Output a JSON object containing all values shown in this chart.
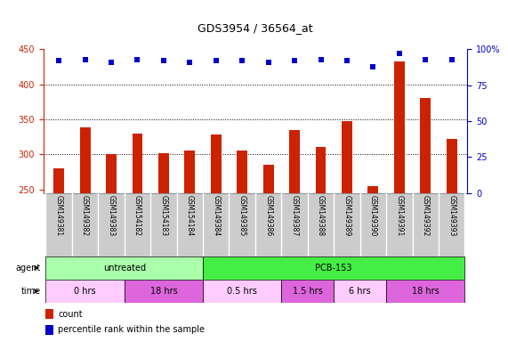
{
  "title": "GDS3954 / 36564_at",
  "samples": [
    "GSM149381",
    "GSM149382",
    "GSM149383",
    "GSM154182",
    "GSM154183",
    "GSM154184",
    "GSM149384",
    "GSM149385",
    "GSM149386",
    "GSM149387",
    "GSM149388",
    "GSM149389",
    "GSM149390",
    "GSM149391",
    "GSM149392",
    "GSM149393"
  ],
  "counts": [
    280,
    338,
    300,
    330,
    302,
    305,
    328,
    306,
    285,
    335,
    311,
    348,
    255,
    432,
    380,
    322
  ],
  "percentile_ranks": [
    92,
    93,
    91,
    93,
    92,
    91,
    92,
    92,
    91,
    92,
    93,
    92,
    88,
    97,
    93,
    93
  ],
  "ylim_left": [
    245,
    450
  ],
  "ylim_right": [
    0,
    100
  ],
  "yticks_left": [
    250,
    300,
    350,
    400,
    450
  ],
  "yticks_right": [
    0,
    25,
    50,
    75,
    100
  ],
  "bar_color": "#cc2200",
  "dot_color": "#0000cc",
  "agent_groups": [
    {
      "label": "untreated",
      "start": 0,
      "end": 6,
      "color": "#aaffaa"
    },
    {
      "label": "PCB-153",
      "start": 6,
      "end": 16,
      "color": "#44ee44"
    }
  ],
  "time_groups": [
    {
      "label": "0 hrs",
      "start": 0,
      "end": 3,
      "color": "#ffccff"
    },
    {
      "label": "18 hrs",
      "start": 3,
      "end": 6,
      "color": "#dd66dd"
    },
    {
      "label": "0.5 hrs",
      "start": 6,
      "end": 9,
      "color": "#ffccff"
    },
    {
      "label": "1.5 hrs",
      "start": 9,
      "end": 11,
      "color": "#dd66dd"
    },
    {
      "label": "6 hrs",
      "start": 11,
      "end": 13,
      "color": "#ffccff"
    },
    {
      "label": "18 hrs",
      "start": 13,
      "end": 16,
      "color": "#dd66dd"
    }
  ],
  "legend_count_label": "count",
  "legend_pct_label": "percentile rank within the sample",
  "bg_color": "#ffffff",
  "label_area_color": "#cccccc",
  "bar_width": 0.4,
  "dot_size": 20,
  "title_fontsize": 9,
  "tick_fontsize": 7,
  "label_fontsize": 5.5,
  "row_label_fontsize": 7,
  "legend_fontsize": 7
}
